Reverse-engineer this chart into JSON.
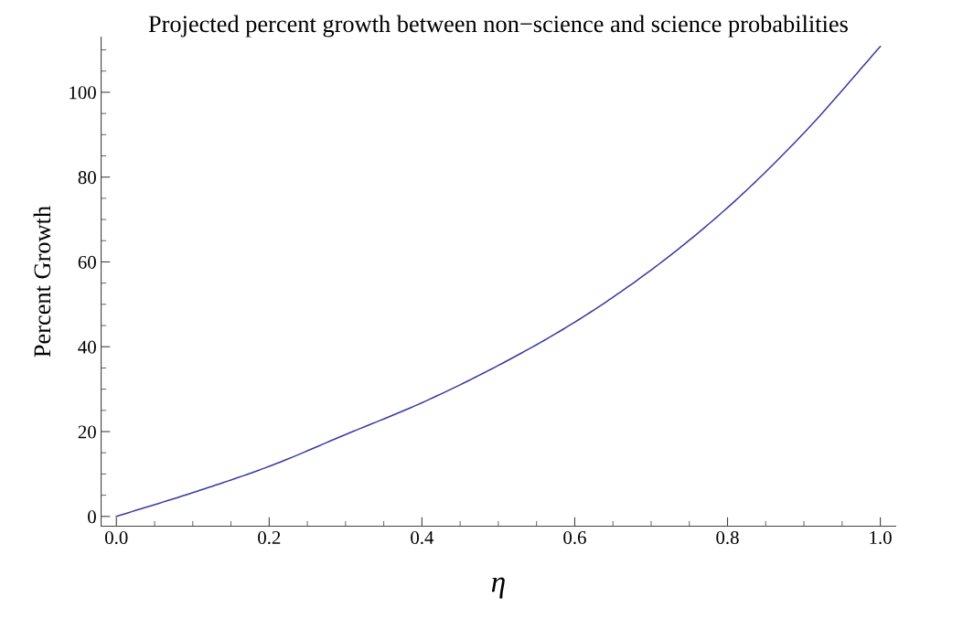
{
  "chart_data": {
    "type": "line",
    "title": "Projected percent growth between non−science and science probabilities",
    "xlabel": "η",
    "ylabel": "Percent Growth",
    "x": [
      0,
      0.1,
      0.2,
      0.3,
      0.4,
      0.5,
      0.6,
      0.7,
      0.8,
      0.9,
      1.0
    ],
    "series": [
      {
        "color": "#3a3aa0",
        "values": [
          0,
          5.6,
          11.8,
          19.3,
          26.8,
          35.6,
          45.8,
          58.1,
          72.8,
          90.4,
          110.8
        ]
      }
    ],
    "xlim": [
      -0.02,
      1.02
    ],
    "ylim": [
      -2.3,
      113
    ],
    "xticks": [
      {
        "value": 0,
        "label": "0.0"
      },
      0.2,
      0.4,
      0.6,
      0.8,
      {
        "value": 1,
        "label": "1.0"
      }
    ],
    "yticks": [
      0,
      20,
      40,
      60,
      80,
      100
    ],
    "grid": false,
    "marker": "none",
    "line_style": "solid"
  }
}
